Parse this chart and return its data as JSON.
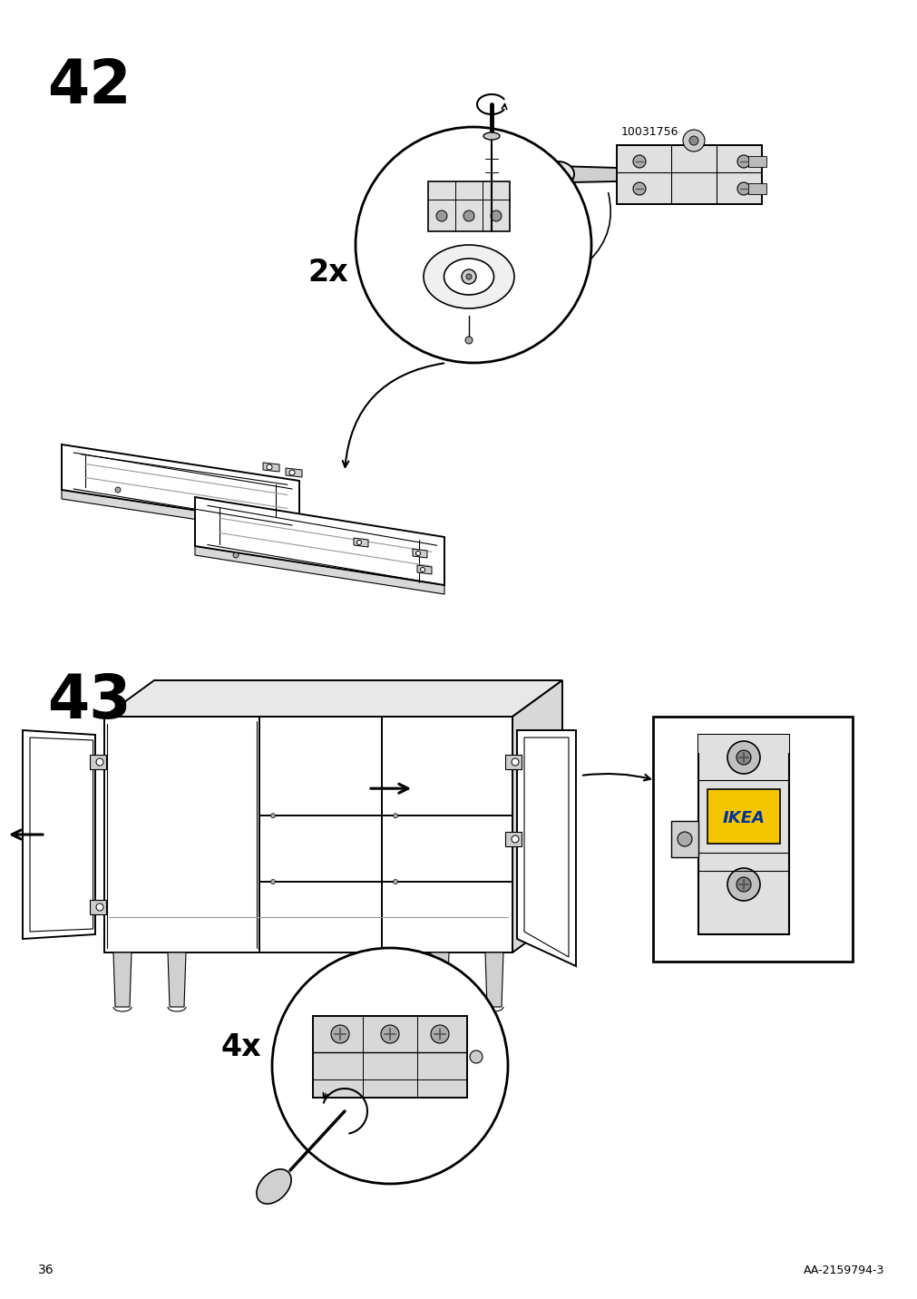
{
  "page_number": "36",
  "doc_number": "AA-2159794-3",
  "step_42": "42",
  "step_43": "43",
  "part_number": "10031756",
  "qty_42": "2x",
  "qty_43": "4x",
  "bg_color": "#ffffff",
  "line_color": "#000000",
  "line_color_light": "#999999",
  "step_font_size": 48,
  "label_font_size": 20,
  "small_font_size": 9,
  "footer_font_size": 10
}
